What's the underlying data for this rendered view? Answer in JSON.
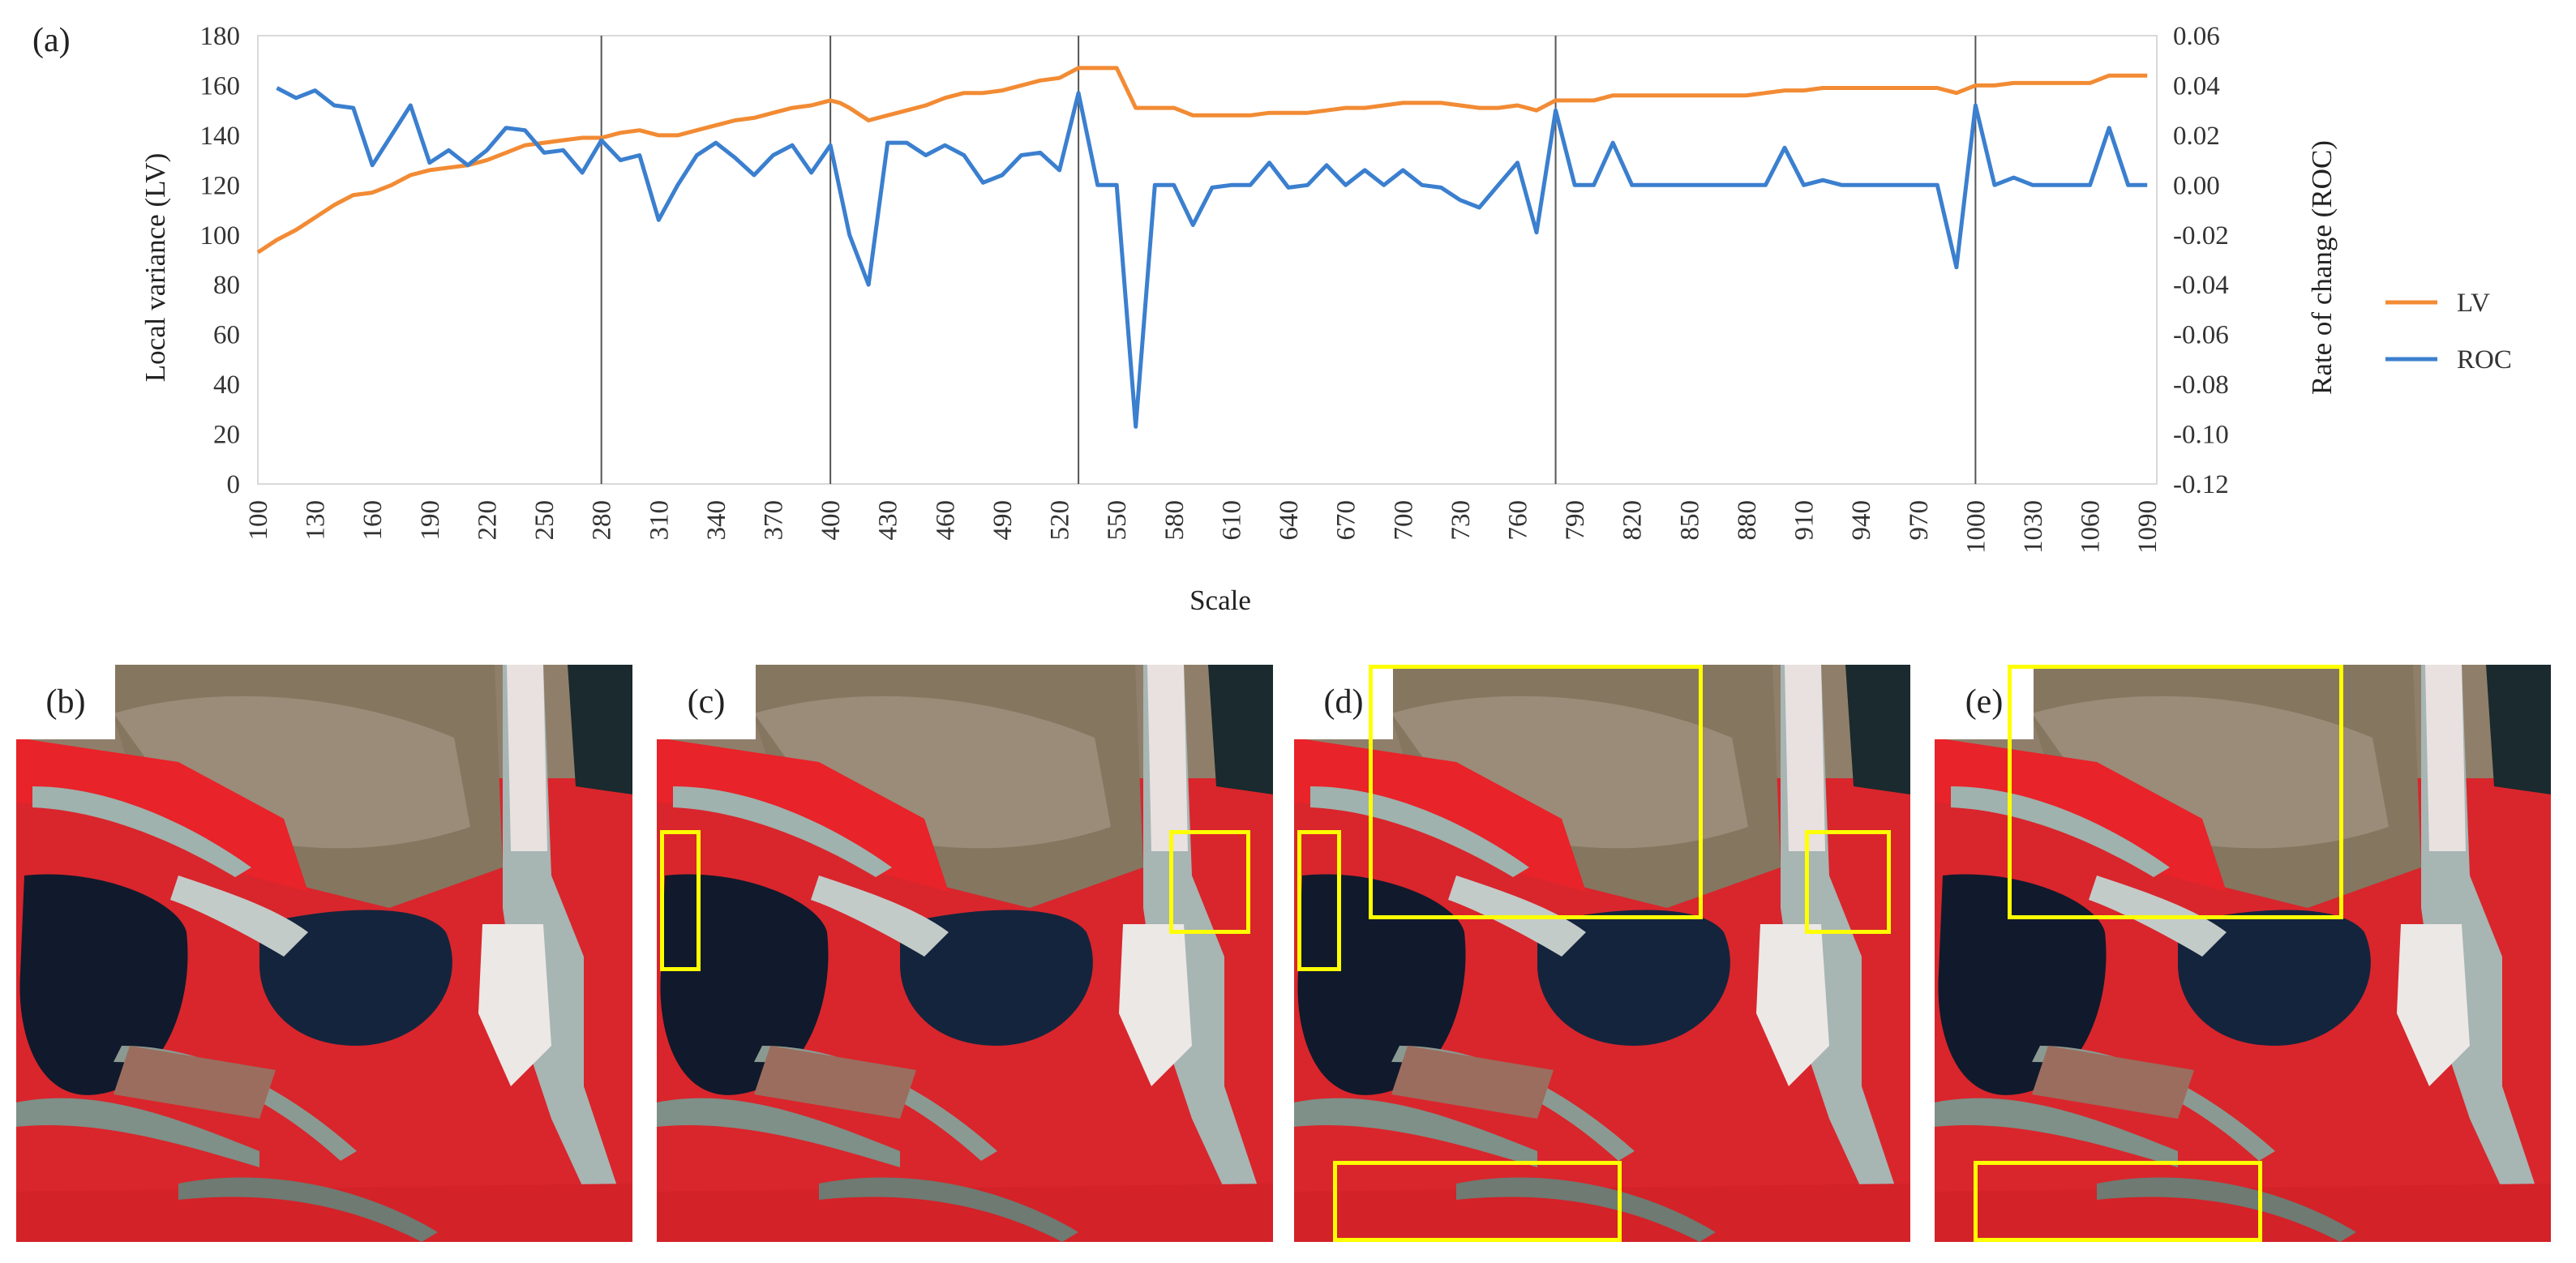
{
  "panel_labels": {
    "a": "(a)",
    "b": "(b)",
    "c": "(c)",
    "d": "(d)",
    "e": "(e)"
  },
  "colors": {
    "lv": "#f28b34",
    "roc": "#3b7fcf",
    "highlight": "#ffff00",
    "divider": "#555555"
  },
  "chart_data": {
    "type": "line",
    "xlabel": "Scale",
    "ylabel": "Local variance (LV)",
    "y2label": "Rate of change (ROC)",
    "x_ticks": [
      100,
      130,
      160,
      190,
      220,
      250,
      280,
      310,
      340,
      370,
      400,
      430,
      460,
      490,
      520,
      550,
      580,
      610,
      640,
      670,
      700,
      730,
      760,
      790,
      820,
      850,
      880,
      910,
      940,
      970,
      1000,
      1030,
      1060,
      1090
    ],
    "x_tick_labels": [
      "100",
      "130",
      "160",
      "190",
      "220",
      "250",
      "280",
      "310",
      "340",
      "370",
      "400",
      "430",
      "460",
      "490",
      "520",
      "550",
      "580",
      "610",
      "640",
      "670",
      "700",
      "730",
      "760",
      "790",
      "820",
      "850",
      "880",
      "910",
      "940",
      "970",
      "1000",
      "1030",
      "1060",
      "1090"
    ],
    "y_ticks": [
      0,
      20,
      40,
      60,
      80,
      100,
      120,
      140,
      160,
      180
    ],
    "y_tick_labels": [
      "0",
      "20",
      "40",
      "60",
      "80",
      "100",
      "120",
      "140",
      "160",
      "180"
    ],
    "y2_ticks": [
      -0.12,
      -0.1,
      -0.08,
      -0.06,
      -0.04,
      -0.02,
      0,
      0.02,
      0.04,
      0.06
    ],
    "y2_tick_labels": [
      "-0.12",
      "-0.10",
      "-0.08",
      "-0.06",
      "-0.04",
      "-0.02",
      "0.00",
      "0.02",
      "0.04",
      "0.06"
    ],
    "xlim": [
      100,
      1095
    ],
    "ylim": [
      0,
      180
    ],
    "y2lim": [
      -0.12,
      0.06
    ],
    "vertical_lines": [
      280,
      400,
      530,
      780,
      1000
    ],
    "legend_position": "right",
    "series": [
      {
        "name": "LV",
        "axis": "left",
        "x": [
          100,
          110,
          120,
          130,
          140,
          150,
          160,
          170,
          180,
          190,
          200,
          210,
          220,
          230,
          240,
          250,
          260,
          270,
          280,
          290,
          300,
          310,
          320,
          330,
          340,
          350,
          360,
          370,
          380,
          390,
          400,
          405,
          410,
          420,
          430,
          440,
          450,
          460,
          470,
          480,
          490,
          500,
          510,
          520,
          530,
          540,
          550,
          560,
          570,
          580,
          590,
          600,
          610,
          620,
          630,
          640,
          650,
          660,
          670,
          680,
          690,
          700,
          710,
          720,
          730,
          740,
          750,
          760,
          770,
          780,
          790,
          800,
          810,
          820,
          830,
          840,
          850,
          860,
          870,
          880,
          890,
          900,
          910,
          920,
          930,
          940,
          950,
          960,
          970,
          980,
          990,
          1000,
          1010,
          1020,
          1030,
          1040,
          1050,
          1060,
          1070,
          1080,
          1090
        ],
        "values": [
          93,
          98,
          102,
          107,
          112,
          116,
          117,
          120,
          124,
          126,
          127,
          128,
          130,
          133,
          136,
          137,
          138,
          139,
          139,
          141,
          142,
          140,
          140,
          142,
          144,
          146,
          147,
          149,
          151,
          152,
          154,
          153,
          151,
          146,
          148,
          150,
          152,
          155,
          157,
          157,
          158,
          160,
          162,
          163,
          167,
          167,
          167,
          151,
          151,
          151,
          148,
          148,
          148,
          148,
          149,
          149,
          149,
          150,
          151,
          151,
          152,
          153,
          153,
          153,
          152,
          151,
          151,
          152,
          150,
          154,
          154,
          154,
          156,
          156,
          156,
          156,
          156,
          156,
          156,
          156,
          157,
          158,
          158,
          159,
          159,
          159,
          159,
          159,
          159,
          159,
          157,
          160,
          160,
          161,
          161,
          161,
          161,
          161,
          164,
          164,
          164
        ]
      },
      {
        "name": "ROC",
        "axis": "right",
        "x": [
          110,
          120,
          130,
          140,
          150,
          160,
          170,
          180,
          190,
          200,
          210,
          220,
          230,
          240,
          250,
          260,
          270,
          280,
          290,
          300,
          310,
          320,
          330,
          340,
          350,
          360,
          370,
          380,
          390,
          400,
          410,
          420,
          430,
          440,
          450,
          460,
          470,
          480,
          490,
          500,
          510,
          520,
          530,
          540,
          550,
          560,
          570,
          580,
          590,
          600,
          610,
          620,
          630,
          640,
          650,
          660,
          670,
          680,
          690,
          700,
          710,
          720,
          730,
          740,
          750,
          760,
          770,
          780,
          790,
          800,
          810,
          820,
          830,
          840,
          850,
          860,
          870,
          880,
          890,
          900,
          910,
          920,
          930,
          940,
          950,
          960,
          970,
          980,
          990,
          1000,
          1010,
          1020,
          1030,
          1040,
          1050,
          1060,
          1070,
          1080,
          1090
        ],
        "values": [
          0.039,
          0.035,
          0.038,
          0.032,
          0.031,
          0.008,
          0.02,
          0.032,
          0.009,
          0.014,
          0.008,
          0.014,
          0.023,
          0.022,
          0.013,
          0.014,
          0.005,
          0.018,
          0.01,
          0.012,
          -0.014,
          0.0,
          0.012,
          0.017,
          0.011,
          0.004,
          0.012,
          0.016,
          0.005,
          0.016,
          -0.02,
          -0.04,
          0.017,
          0.017,
          0.012,
          0.016,
          0.012,
          0.001,
          0.004,
          0.012,
          0.013,
          0.006,
          0.037,
          0.0,
          0.0,
          -0.097,
          0.0,
          0.0,
          -0.016,
          -0.001,
          0.0,
          0.0,
          0.009,
          -0.001,
          0.0,
          0.008,
          0.0,
          0.006,
          0.0,
          0.006,
          0.0,
          -0.001,
          -0.006,
          -0.009,
          0.0,
          0.009,
          -0.019,
          0.03,
          0.0,
          0.0,
          0.017,
          0.0,
          0.0,
          0.0,
          0.0,
          0.0,
          0.0,
          0.0,
          0.0,
          0.015,
          0.0,
          0.002,
          0.0,
          0.0,
          0.0,
          0.0,
          0.0,
          0.0,
          -0.033,
          0.032,
          0.0,
          0.003,
          0.0,
          0.0,
          0.0,
          0.0,
          0.023,
          0.0,
          0.0
        ]
      }
    ]
  }
}
